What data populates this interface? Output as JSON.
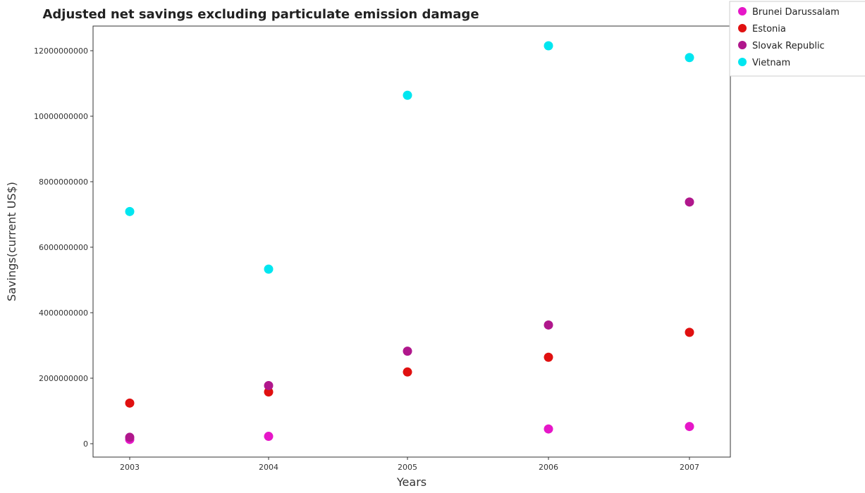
{
  "chart_data": {
    "type": "scatter",
    "title": "Adjusted net savings excluding particulate emission damage",
    "xlabel": "Years",
    "ylabel": "Savings(current US$)",
    "categories": [
      "2003",
      "2004",
      "2005",
      "2006",
      "2007"
    ],
    "ylim": [
      0,
      13000000000
    ],
    "yticks": [
      0,
      2000000000,
      4000000000,
      6000000000,
      8000000000,
      10000000000,
      12000000000
    ],
    "ytick_labels": [
      "0",
      "2000000000",
      "4000000000",
      "6000000000",
      "8000000000",
      "10000000000",
      "12000000000"
    ],
    "grid": false,
    "legend_position": "top-right",
    "series": [
      {
        "name": "Brunei Darussalam",
        "color": "#e617c8",
        "values": [
          130000000,
          225000000,
          null,
          450000000,
          525000000
        ]
      },
      {
        "name": "Estonia",
        "color": "#e01010",
        "values": [
          1240000000,
          1580000000,
          2190000000,
          2640000000,
          3400000000
        ]
      },
      {
        "name": "Slovak Republic",
        "color": "#b0178c",
        "values": [
          195000000,
          1775000000,
          2825000000,
          3625000000,
          7380000000
        ]
      },
      {
        "name": "Vietnam",
        "color": "#00e6f0",
        "values": [
          7090000000,
          5330000000,
          10640000000,
          12150000000,
          11790000000
        ]
      }
    ]
  }
}
